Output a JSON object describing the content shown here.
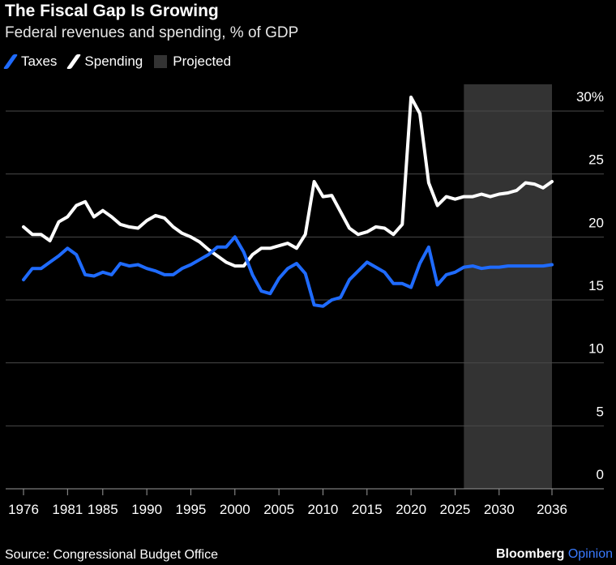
{
  "title": "The Fiscal Gap Is Growing",
  "subtitle": "Federal revenues and spending, % of GDP",
  "legend": {
    "taxes": "Taxes",
    "spending": "Spending",
    "projected": "Projected"
  },
  "source": "Source: Congressional Budget Office",
  "brand": {
    "name": "Bloomberg",
    "suffix": "Opinion"
  },
  "colors": {
    "taxes": "#1f6bff",
    "spending": "#ffffff",
    "projected": "#333333",
    "background": "#000000",
    "grid": "#4a4a4a"
  },
  "chart_data": {
    "type": "line",
    "xlim": [
      1976,
      2036
    ],
    "ylim": [
      0,
      30
    ],
    "x_ticks": [
      1976,
      1981,
      1985,
      1990,
      1995,
      2000,
      2005,
      2010,
      2015,
      2020,
      2025,
      2030,
      2036
    ],
    "y_ticks": [
      0,
      5,
      10,
      15,
      20,
      25,
      30
    ],
    "y_tick_labels": [
      "0",
      "5",
      "10",
      "15",
      "20",
      "25",
      "30%"
    ],
    "projected_range": [
      2026,
      2036
    ],
    "grid": true,
    "legend_position": "top-left",
    "x": [
      1976,
      1977,
      1978,
      1979,
      1980,
      1981,
      1982,
      1983,
      1984,
      1985,
      1986,
      1987,
      1988,
      1989,
      1990,
      1991,
      1992,
      1993,
      1994,
      1995,
      1996,
      1997,
      1998,
      1999,
      2000,
      2001,
      2002,
      2003,
      2004,
      2005,
      2006,
      2007,
      2008,
      2009,
      2010,
      2011,
      2012,
      2013,
      2014,
      2015,
      2016,
      2017,
      2018,
      2019,
      2020,
      2021,
      2022,
      2023,
      2024,
      2025,
      2026,
      2027,
      2028,
      2029,
      2030,
      2031,
      2032,
      2033,
      2034,
      2035,
      2036
    ],
    "series": [
      {
        "name": "Taxes",
        "values": [
          16.6,
          17.5,
          17.5,
          18.0,
          18.5,
          19.1,
          18.6,
          17.0,
          16.9,
          17.2,
          17.0,
          17.9,
          17.7,
          17.8,
          17.5,
          17.3,
          17.0,
          17.0,
          17.5,
          17.8,
          18.2,
          18.6,
          19.2,
          19.2,
          20.0,
          18.8,
          17.0,
          15.7,
          15.5,
          16.7,
          17.5,
          17.9,
          17.1,
          14.6,
          14.5,
          15.0,
          15.2,
          16.6,
          17.3,
          18.0,
          17.6,
          17.2,
          16.3,
          16.3,
          16.0,
          17.9,
          19.2,
          16.2,
          17.0,
          17.2,
          17.6,
          17.7,
          17.5,
          17.6,
          17.6,
          17.7,
          17.7,
          17.7,
          17.7,
          17.7,
          17.8
        ]
      },
      {
        "name": "Spending",
        "values": [
          20.8,
          20.2,
          20.2,
          19.7,
          21.2,
          21.6,
          22.5,
          22.8,
          21.6,
          22.1,
          21.6,
          21.0,
          20.8,
          20.7,
          21.3,
          21.7,
          21.5,
          20.8,
          20.3,
          20.0,
          19.6,
          19.0,
          18.5,
          18.0,
          17.7,
          17.7,
          18.6,
          19.1,
          19.1,
          19.3,
          19.5,
          19.1,
          20.2,
          24.4,
          23.2,
          23.3,
          22.0,
          20.7,
          20.2,
          20.4,
          20.8,
          20.7,
          20.2,
          21.0,
          31.1,
          29.8,
          24.3,
          22.5,
          23.2,
          23.0,
          23.2,
          23.2,
          23.4,
          23.2,
          23.4,
          23.5,
          23.7,
          24.3,
          24.2,
          23.9,
          24.4
        ]
      }
    ]
  }
}
